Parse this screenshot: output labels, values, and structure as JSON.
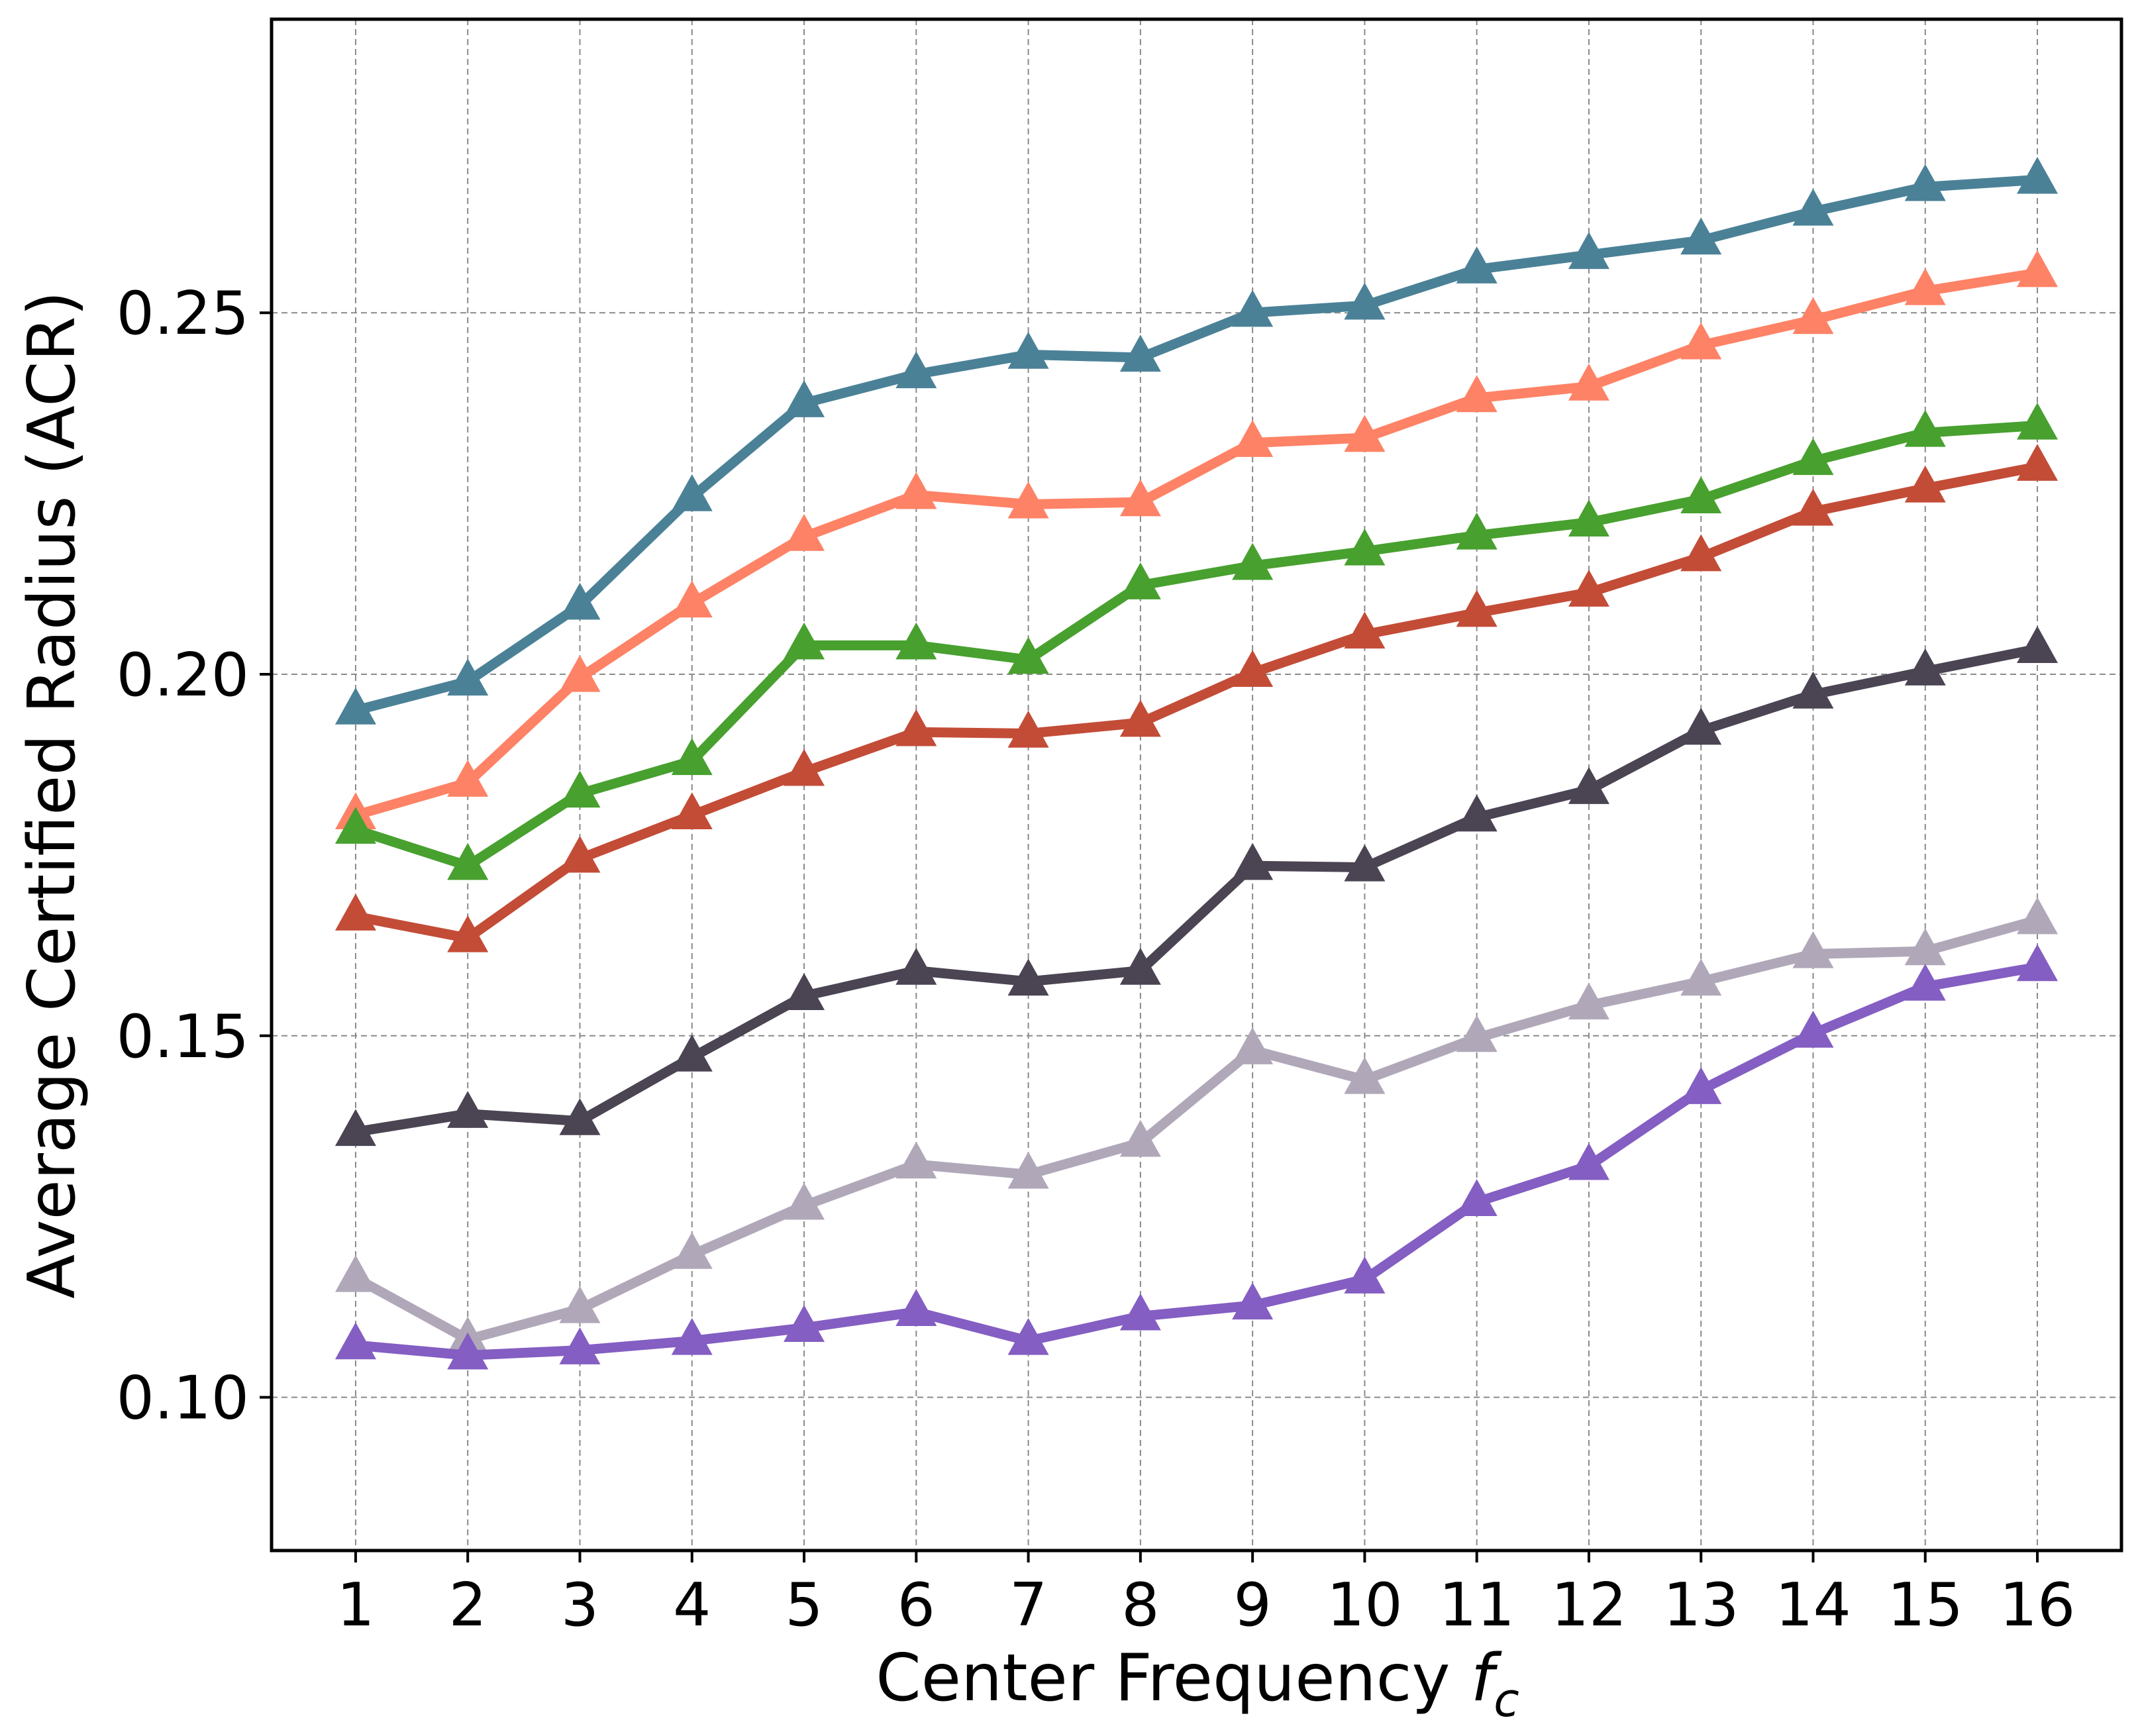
{
  "chart_data": {
    "type": "line",
    "title": "",
    "xlabel": "Center Frequency ",
    "xlabel_symbol": "f",
    "xlabel_subscript": "c",
    "ylabel": "Average Certified Radius (ACR)",
    "x": [
      1,
      2,
      3,
      4,
      5,
      6,
      7,
      8,
      9,
      10,
      11,
      12,
      13,
      14,
      15,
      16
    ],
    "x_tick_labels": [
      "1",
      "2",
      "3",
      "4",
      "5",
      "6",
      "7",
      "8",
      "9",
      "10",
      "11",
      "12",
      "13",
      "14",
      "15",
      "16"
    ],
    "y_ticks": [
      0.1,
      0.15,
      0.2,
      0.25
    ],
    "y_tick_labels": [
      "0.10",
      "0.15",
      "0.20",
      "0.25"
    ],
    "xlim": [
      0.25,
      16.75
    ],
    "ylim": [
      0.0788,
      0.2906
    ],
    "grid": true,
    "grid_style": "dashed",
    "legend": "none",
    "marker": "triangle-up",
    "series": [
      {
        "color": "#4b8197",
        "values": [
          0.195,
          0.199,
          0.2095,
          0.2245,
          0.2375,
          0.2415,
          0.2442,
          0.2438,
          0.25,
          0.251,
          0.256,
          0.258,
          0.26,
          0.264,
          0.2674,
          0.2684
        ]
      },
      {
        "color": "#fe8266",
        "values": [
          0.1805,
          0.185,
          0.1995,
          0.2098,
          0.219,
          0.2248,
          0.2235,
          0.2238,
          0.232,
          0.2327,
          0.2382,
          0.2398,
          0.2455,
          0.249,
          0.253,
          0.2555
        ]
      },
      {
        "color": "#48a02f",
        "values": [
          0.1785,
          0.1735,
          0.1835,
          0.188,
          0.204,
          0.204,
          0.202,
          0.2123,
          0.215,
          0.217,
          0.2192,
          0.221,
          0.2242,
          0.2295,
          0.2334,
          0.2344
        ]
      },
      {
        "color": "#c34c37",
        "values": [
          0.1665,
          0.1635,
          0.1745,
          0.1805,
          0.1865,
          0.192,
          0.1918,
          0.1933,
          0.2002,
          0.2055,
          0.2085,
          0.2113,
          0.2162,
          0.2225,
          0.2257,
          0.2287
        ]
      },
      {
        "color": "#4a4453",
        "values": [
          0.1367,
          0.1392,
          0.1382,
          0.147,
          0.1555,
          0.159,
          0.1575,
          0.159,
          0.1735,
          0.1733,
          0.1802,
          0.184,
          0.1922,
          0.1972,
          0.2004,
          0.2035
        ]
      },
      {
        "color": "#b0a8b9",
        "values": [
          0.1165,
          0.108,
          0.1122,
          0.1197,
          0.1265,
          0.1322,
          0.1308,
          0.1352,
          0.148,
          0.1439,
          0.1497,
          0.1542,
          0.1575,
          0.1613,
          0.1617,
          0.166
        ]
      },
      {
        "color": "#845ec2",
        "values": [
          0.1072,
          0.1058,
          0.1065,
          0.1078,
          0.1096,
          0.1118,
          0.1078,
          0.1112,
          0.1127,
          0.1163,
          0.127,
          0.132,
          0.1425,
          0.1503,
          0.1568,
          0.1595
        ]
      }
    ]
  }
}
